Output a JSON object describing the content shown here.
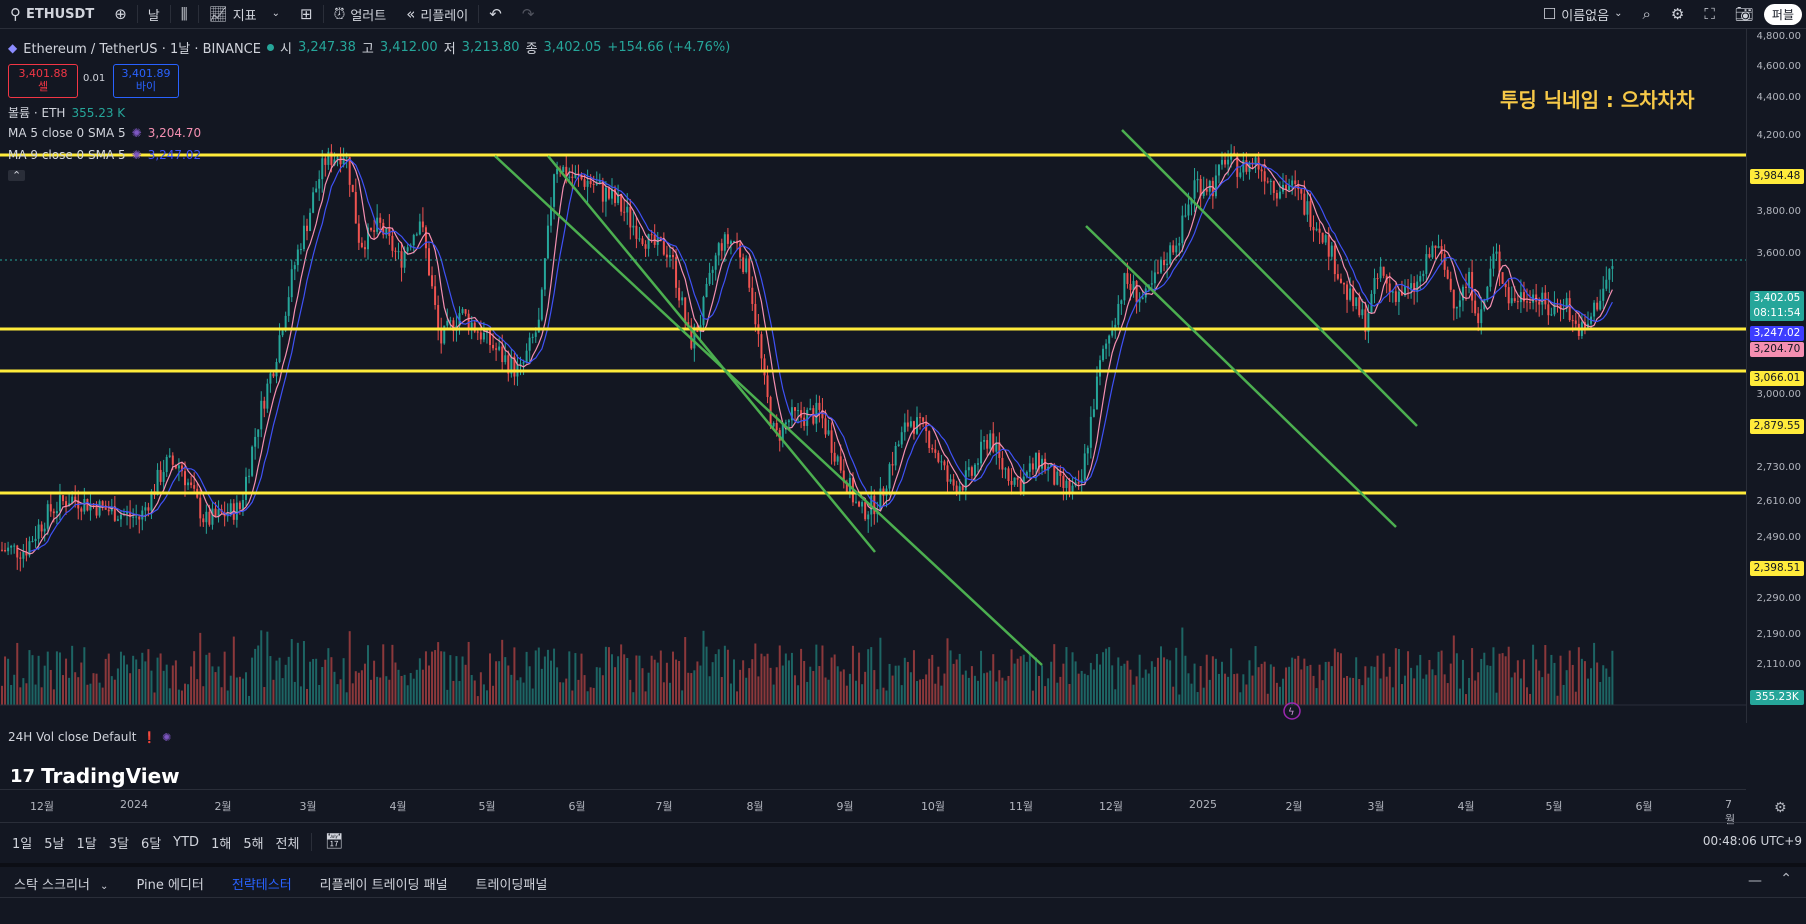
{
  "toolbar": {
    "symbol": "ETHUSDT",
    "interval": "날",
    "indicators": "지표",
    "alert": "얼러트",
    "replay": "리플레이",
    "layout_name": "이름없음",
    "publish": "퍼블"
  },
  "legend": {
    "title": "Ethereum / TetherUS · 1날 · BINANCE",
    "o_label": "시",
    "o": "3,247.38",
    "h_label": "고",
    "h": "3,412.00",
    "l_label": "저",
    "l": "3,213.80",
    "c_label": "종",
    "c": "3,402.05",
    "change": "+154.66 (+4.76%)"
  },
  "trade": {
    "sell_price": "3,401.88",
    "sell_label": "셀",
    "spread": "0.01",
    "buy_price": "3,401.89",
    "buy_label": "바이"
  },
  "indicators": {
    "volume_label": "볼륨 · ETH",
    "volume_value": "355.23 K",
    "ma5_label": "MA 5 close 0 SMA 5",
    "ma5_value": "3,204.70",
    "ma9_label": "MA 9 close 0 SMA 5",
    "ma9_value": "3,247.02",
    "vol24_label": "24H Vol close Default"
  },
  "annotation": "투딩 닉네임 : 으차차차",
  "price_axis": {
    "labels": [
      "4,800.00",
      "4,600.00",
      "4,400.00",
      "4,200.00",
      "3,800.00",
      "3,600.00",
      "3,000.00",
      "2,730.00",
      "2,610.00",
      "2,490.00",
      "2,290.00",
      "2,190.00",
      "2,110.00"
    ],
    "tags": {
      "level1": "3,984.48",
      "last": "3,402.05",
      "countdown": "08:11:54",
      "ma9": "3,247.02",
      "ma5": "3,204.70",
      "level2": "3,066.01",
      "level3": "2,879.55",
      "level4": "2,398.51",
      "volume": "355.23K"
    }
  },
  "time_axis": [
    "12월",
    "2024",
    "2월",
    "3월",
    "4월",
    "5월",
    "6월",
    "7월",
    "8월",
    "9월",
    "10월",
    "11월",
    "12월",
    "2025",
    "2월",
    "3월",
    "4월",
    "5월",
    "6월",
    "7월"
  ],
  "ranges": [
    "1일",
    "5날",
    "1달",
    "3달",
    "6달",
    "YTD",
    "1해",
    "5해",
    "전체"
  ],
  "clock": "00:48:06 UTC+9",
  "bottom_tabs": [
    "스탁 스크리너",
    "Pine 에디터",
    "전략테스터",
    "리플레이 트레이딩 패널",
    "트레이딩패널"
  ],
  "logo_text": "TradingView",
  "colors": {
    "up": "#26a69a",
    "down": "#ef5350",
    "level": "#ffeb3b",
    "channel": "#4caf50",
    "ma5": "#f48fb1",
    "ma9": "#3f51f5",
    "accent": "#2962ff"
  },
  "chart_data": {
    "type": "candlestick",
    "horizontal_levels": [
      3984.48,
      3066.01,
      2879.55,
      2398.51
    ],
    "last_price": 3402.05
  }
}
